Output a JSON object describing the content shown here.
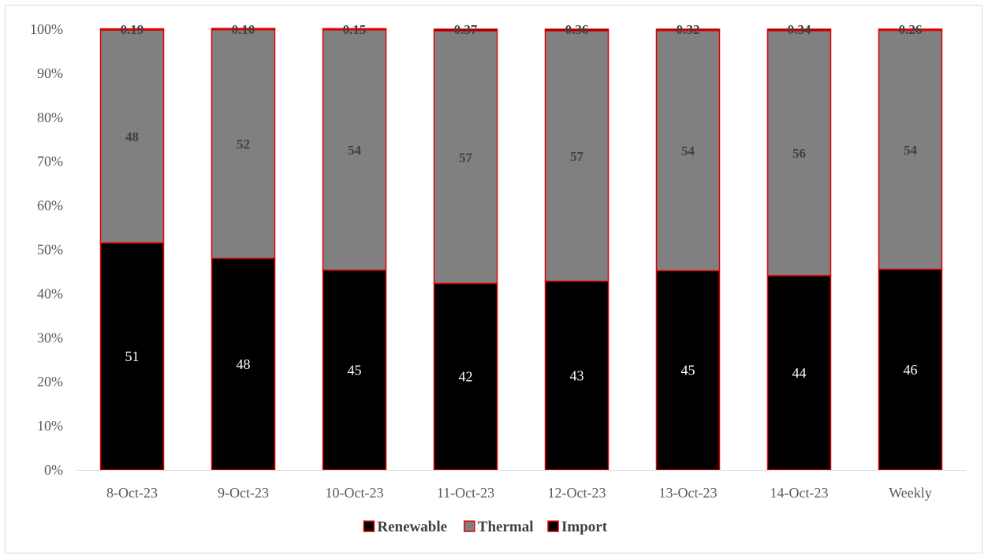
{
  "chart_data": {
    "type": "bar",
    "stacked": true,
    "percent_stacked": true,
    "categories": [
      "8-Oct-23",
      "9-Oct-23",
      "10-Oct-23",
      "11-Oct-23",
      "12-Oct-23",
      "13-Oct-23",
      "14-Oct-23",
      "Weekly"
    ],
    "series": [
      {
        "name": "Renewable",
        "color": "#000000",
        "border": "#e00000",
        "values": [
          51.5,
          48.0,
          45.3,
          42.3,
          42.8,
          45.2,
          44.1,
          45.5
        ],
        "labels": [
          "51",
          "48",
          "45",
          "42",
          "43",
          "45",
          "44",
          "46"
        ]
      },
      {
        "name": "Thermal",
        "color": "#808080",
        "border": "#e00000",
        "values": [
          48.3,
          51.9,
          54.5,
          57.3,
          56.8,
          54.5,
          55.6,
          54.2
        ],
        "labels": [
          "48",
          "52",
          "54",
          "57",
          "57",
          "54",
          "56",
          "54"
        ]
      },
      {
        "name": "Import",
        "color": "#000000",
        "border": "#e00000",
        "values": [
          0.19,
          0.1,
          0.15,
          0.37,
          0.36,
          0.32,
          0.34,
          0.26
        ],
        "labels": [
          "0.19",
          "0.10",
          "0.15",
          "0.37",
          "0.36",
          "0.32",
          "0.34",
          "0.26"
        ]
      }
    ],
    "yticks": [
      "0%",
      "10%",
      "20%",
      "30%",
      "40%",
      "50%",
      "60%",
      "70%",
      "80%",
      "90%",
      "100%"
    ],
    "ylim": [
      0,
      100
    ],
    "grid": false,
    "legend_position": "bottom"
  }
}
